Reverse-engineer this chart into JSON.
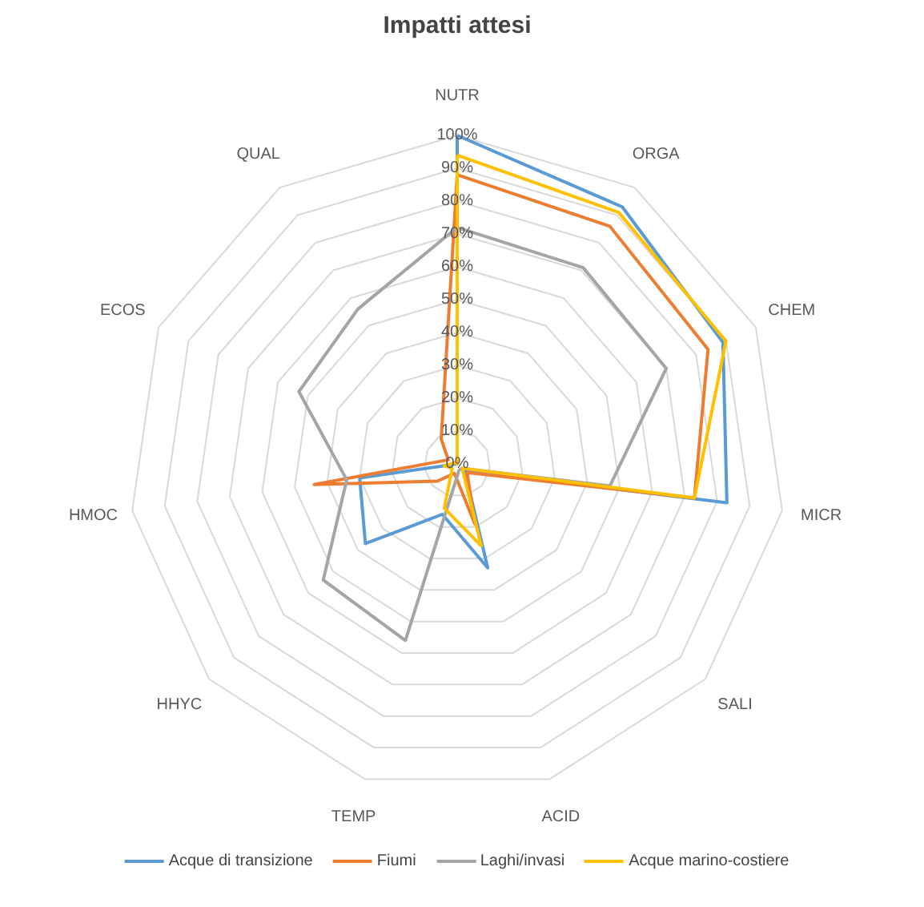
{
  "chart_data": {
    "type": "radar",
    "title": "Impatti attesi",
    "categories": [
      "NUTR",
      "ORGA",
      "CHEM",
      "MICR",
      "SALI",
      "ACID",
      "TEMP",
      "HHYC",
      "HMOC",
      "ECOS",
      "QUAL"
    ],
    "ylim": [
      0,
      100
    ],
    "yticks": [
      {
        "value": 0,
        "label": "0%"
      },
      {
        "value": 10,
        "label": "10%"
      },
      {
        "value": 20,
        "label": "20%"
      },
      {
        "value": 30,
        "label": "30%"
      },
      {
        "value": 40,
        "label": "40%"
      },
      {
        "value": 50,
        "label": "50%"
      },
      {
        "value": 60,
        "label": "60%"
      },
      {
        "value": 70,
        "label": "70%"
      },
      {
        "value": 80,
        "label": "80%"
      },
      {
        "value": 90,
        "label": "90%"
      },
      {
        "value": 100,
        "label": "100%"
      }
    ],
    "grid": true,
    "legend": "bottom",
    "marker": "none",
    "line_style": "solid",
    "series": [
      {
        "name": "Acque di transizione",
        "color": "#5b9bd5",
        "values": [
          100,
          93,
          89,
          83,
          3,
          33,
          16,
          37,
          30,
          0,
          0
        ]
      },
      {
        "name": "Fiumi",
        "color": "#ed7d31",
        "values": [
          88,
          86,
          84,
          73,
          4,
          19,
          3,
          8,
          44,
          3,
          9
        ]
      },
      {
        "name": "Laghi/invasi",
        "color": "#a5a5a5",
        "values": [
          72,
          71,
          70,
          47,
          2,
          2,
          56,
          54,
          34,
          53,
          56
        ]
      },
      {
        "name": "Acque marino-costiere",
        "color": "#ffc000",
        "values": [
          94,
          91,
          90,
          73,
          2,
          26,
          14,
          2,
          4,
          1,
          0
        ]
      }
    ]
  }
}
